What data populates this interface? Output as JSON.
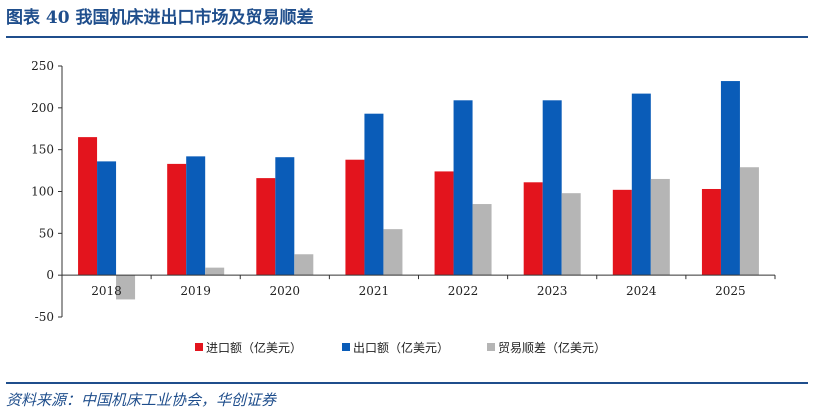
{
  "header": {
    "title": "图表 40    我国机床进出口市场及贸易顺差"
  },
  "footer": {
    "source": "资料来源：中国机床工业协会，华创证券"
  },
  "chart_data": {
    "type": "bar",
    "title": "",
    "xlabel": "",
    "ylabel": "",
    "categories": [
      "2018",
      "2019",
      "2020",
      "2021",
      "2022",
      "2023",
      "2024",
      "2025"
    ],
    "ylim": [
      -50,
      250
    ],
    "yticks": [
      -50,
      0,
      50,
      100,
      150,
      200,
      250
    ],
    "grid": false,
    "legend_position": "bottom",
    "series": [
      {
        "name": "进口额（亿美元）",
        "color": "#e3141d",
        "values": [
          165,
          133,
          116,
          138,
          124,
          111,
          102,
          103
        ]
      },
      {
        "name": "出口额（亿美元）",
        "color": "#0a5cb8",
        "values": [
          136,
          142,
          141,
          193,
          209,
          209,
          217,
          232
        ]
      },
      {
        "name": "贸易顺差（亿美元）",
        "color": "#b5b5b5",
        "values": [
          -29,
          9,
          25,
          55,
          85,
          98,
          115,
          129
        ]
      }
    ]
  }
}
